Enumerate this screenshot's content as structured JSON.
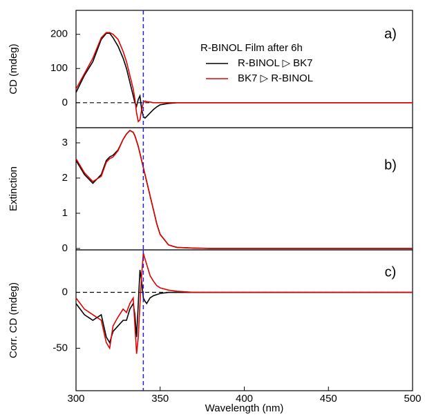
{
  "chart_data": [
    {
      "type": "line",
      "annotation": "a)",
      "ylabel": "CD (mdeg)",
      "legend_title": "R-BINOL Film after 6h",
      "x": [
        300,
        305,
        310,
        315,
        318,
        320,
        322,
        325,
        328,
        330,
        332,
        334,
        335,
        336,
        337,
        338,
        339,
        340,
        341,
        342,
        344,
        346,
        348,
        350,
        355,
        360,
        370,
        380,
        400,
        420,
        450,
        480,
        500
      ],
      "xlim": [
        300,
        500
      ],
      "ylim": [
        -73,
        270
      ],
      "yticks": [
        0,
        100,
        200
      ],
      "vline": 340,
      "hline": 0,
      "series": [
        {
          "name": "R-BINOL ▷ BK7",
          "color": "#000000",
          "values": [
            30,
            80,
            120,
            185,
            203,
            203,
            190,
            165,
            130,
            100,
            60,
            20,
            0,
            -10,
            10,
            20,
            -20,
            -40,
            -45,
            -40,
            -30,
            -20,
            -12,
            -6,
            -2,
            0,
            0,
            0,
            0,
            0,
            0,
            0,
            0
          ]
        },
        {
          "name": "BK7 ▷ R-BINOL",
          "color": "#e00000",
          "values": [
            40,
            85,
            130,
            190,
            205,
            205,
            200,
            185,
            150,
            120,
            80,
            40,
            10,
            -30,
            -55,
            -50,
            -20,
            0,
            5,
            3,
            2,
            0,
            0,
            0,
            0,
            0,
            0,
            0,
            0,
            0,
            0,
            0,
            0
          ]
        }
      ]
    },
    {
      "type": "line",
      "annotation": "b)",
      "ylabel": "Extinction",
      "x": [
        300,
        305,
        310,
        315,
        318,
        320,
        322,
        325,
        328,
        330,
        332,
        334,
        335,
        336,
        337,
        338,
        339,
        340,
        341,
        342,
        344,
        346,
        348,
        350,
        355,
        360,
        370,
        380,
        400,
        420,
        450,
        480,
        500
      ],
      "xlim": [
        300,
        500
      ],
      "ylim": [
        -0.04,
        3.43
      ],
      "yticks": [
        0,
        1,
        2,
        3
      ],
      "vline": 340,
      "series": [
        {
          "color": "#000000",
          "values": [
            2.5,
            2.1,
            1.85,
            2.1,
            2.5,
            2.6,
            2.65,
            2.8,
            3.1,
            3.25,
            3.35,
            3.3,
            3.2,
            3.05,
            2.9,
            2.7,
            2.5,
            2.3,
            2.1,
            1.9,
            1.5,
            1.1,
            0.7,
            0.4,
            0.1,
            0.03,
            0.01,
            0,
            0,
            0,
            0,
            0,
            0
          ]
        },
        {
          "color": "#e00000",
          "values": [
            2.55,
            2.15,
            1.9,
            2.05,
            2.45,
            2.55,
            2.6,
            2.78,
            3.1,
            3.25,
            3.35,
            3.3,
            3.2,
            3.05,
            2.9,
            2.7,
            2.5,
            2.3,
            2.1,
            1.9,
            1.5,
            1.1,
            0.7,
            0.4,
            0.1,
            0.03,
            0.01,
            0,
            0,
            0,
            0,
            0,
            0
          ]
        }
      ]
    },
    {
      "type": "line",
      "annotation": "c)",
      "ylabel": "Corr. CD (mdeg)",
      "xlabel": "Wavelength (nm)",
      "x": [
        300,
        305,
        310,
        315,
        318,
        320,
        322,
        325,
        328,
        330,
        332,
        334,
        335,
        336,
        337,
        338,
        339,
        340,
        341,
        342,
        344,
        346,
        348,
        350,
        355,
        360,
        370,
        380,
        400,
        420,
        450,
        480,
        500
      ],
      "xlim": [
        300,
        500
      ],
      "xticks": [
        300,
        350,
        400,
        450,
        500
      ],
      "ylim": [
        -88,
        38
      ],
      "yticks": [
        -50,
        0
      ],
      "vline": 340,
      "hline": 0,
      "series": [
        {
          "color": "#000000",
          "values": [
            -10,
            -20,
            -25,
            -20,
            -40,
            -45,
            -35,
            -30,
            -25,
            -25,
            -15,
            -10,
            -20,
            -40,
            -10,
            20,
            10,
            -5,
            -8,
            -10,
            -5,
            -3,
            -2,
            -1,
            0,
            0,
            0,
            0,
            0,
            0,
            0,
            0,
            0
          ]
        },
        {
          "color": "#e00000",
          "values": [
            -5,
            -15,
            -20,
            -25,
            -45,
            -50,
            -30,
            -22,
            -15,
            -18,
            -10,
            -5,
            -30,
            -55,
            -40,
            -10,
            15,
            35,
            30,
            25,
            15,
            10,
            6,
            4,
            2,
            1,
            0,
            0,
            0,
            0,
            0,
            0,
            0
          ]
        }
      ]
    }
  ]
}
